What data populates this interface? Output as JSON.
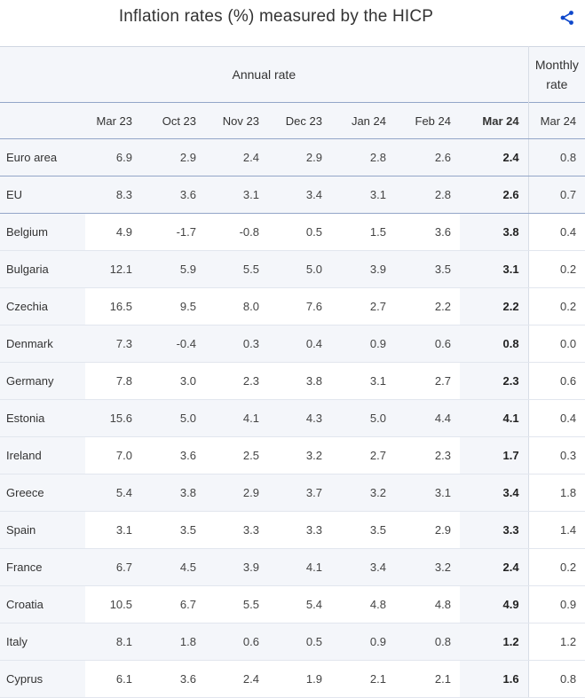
{
  "title": "Inflation rates (%) measured by the HICP",
  "header": {
    "annual": "Annual rate",
    "monthly_line1": "Monthly",
    "monthly_line2": "rate",
    "columns": [
      "Mar 23",
      "Oct 23",
      "Nov 23",
      "Dec 23",
      "Jan 24",
      "Feb 24",
      "Mar 24",
      "Mar 24"
    ]
  },
  "rows": [
    {
      "name": "Euro area",
      "values": [
        "6.9",
        "2.9",
        "2.4",
        "2.9",
        "2.8",
        "2.6",
        "2.4",
        "0.8"
      ]
    },
    {
      "name": "EU",
      "values": [
        "8.3",
        "3.6",
        "3.1",
        "3.4",
        "3.1",
        "2.8",
        "2.6",
        "0.7"
      ]
    },
    {
      "name": "Belgium",
      "values": [
        "4.9",
        "-1.7",
        "-0.8",
        "0.5",
        "1.5",
        "3.6",
        "3.8",
        "0.4"
      ]
    },
    {
      "name": "Bulgaria",
      "values": [
        "12.1",
        "5.9",
        "5.5",
        "5.0",
        "3.9",
        "3.5",
        "3.1",
        "0.2"
      ]
    },
    {
      "name": "Czechia",
      "values": [
        "16.5",
        "9.5",
        "8.0",
        "7.6",
        "2.7",
        "2.2",
        "2.2",
        "0.2"
      ]
    },
    {
      "name": "Denmark",
      "values": [
        "7.3",
        "-0.4",
        "0.3",
        "0.4",
        "0.9",
        "0.6",
        "0.8",
        "0.0"
      ]
    },
    {
      "name": "Germany",
      "values": [
        "7.8",
        "3.0",
        "2.3",
        "3.8",
        "3.1",
        "2.7",
        "2.3",
        "0.6"
      ]
    },
    {
      "name": "Estonia",
      "values": [
        "15.6",
        "5.0",
        "4.1",
        "4.3",
        "5.0",
        "4.4",
        "4.1",
        "0.4"
      ]
    },
    {
      "name": "Ireland",
      "values": [
        "7.0",
        "3.6",
        "2.5",
        "3.2",
        "2.7",
        "2.3",
        "1.7",
        "0.3"
      ]
    },
    {
      "name": "Greece",
      "values": [
        "5.4",
        "3.8",
        "2.9",
        "3.7",
        "3.2",
        "3.1",
        "3.4",
        "1.8"
      ]
    },
    {
      "name": "Spain",
      "values": [
        "3.1",
        "3.5",
        "3.3",
        "3.3",
        "3.5",
        "2.9",
        "3.3",
        "1.4"
      ]
    },
    {
      "name": "France",
      "values": [
        "6.7",
        "4.5",
        "3.9",
        "4.1",
        "3.4",
        "3.2",
        "2.4",
        "0.2"
      ]
    },
    {
      "name": "Croatia",
      "values": [
        "10.5",
        "6.7",
        "5.5",
        "5.4",
        "4.8",
        "4.8",
        "4.9",
        "0.9"
      ]
    },
    {
      "name": "Italy",
      "values": [
        "8.1",
        "1.8",
        "0.6",
        "0.5",
        "0.9",
        "0.8",
        "1.2",
        "1.2"
      ]
    },
    {
      "name": "Cyprus",
      "values": [
        "6.1",
        "3.6",
        "2.4",
        "1.9",
        "2.1",
        "2.1",
        "1.6",
        "0.8"
      ]
    }
  ],
  "colors": {
    "accent": "#0e47cb",
    "band": "#f4f6fa",
    "rule": "#93a6c8"
  },
  "icons": {
    "share": "share-icon"
  }
}
